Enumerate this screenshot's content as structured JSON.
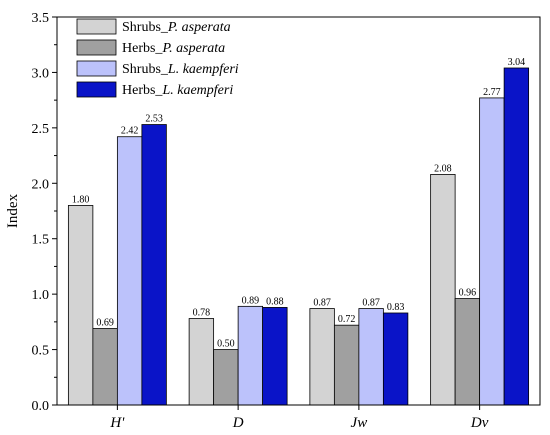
{
  "chart_data": {
    "type": "bar",
    "categories": [
      "H'",
      "D",
      "Jw",
      "Dv"
    ],
    "ylabel": "Index",
    "xlabel": "",
    "ylim": [
      0,
      3.5
    ],
    "yticks": [
      "0.0",
      "0.5",
      "1.0",
      "1.5",
      "2.0",
      "2.5",
      "3.0",
      "3.5"
    ],
    "grid": false,
    "legend_position": "top-left",
    "series": [
      {
        "name": "Shrubs_P. asperata",
        "name_prefix": "Shrubs_",
        "name_species": "P. asperata",
        "color": "#d3d3d3",
        "values": [
          1.8,
          0.78,
          0.87,
          2.08
        ],
        "labels": [
          "1.80",
          "0.78",
          "0.87",
          "2.08"
        ]
      },
      {
        "name": "Herbs_P. asperata",
        "name_prefix": "Herbs_",
        "name_species": "P. asperata",
        "color": "#a0a0a0",
        "values": [
          0.69,
          0.5,
          0.72,
          0.96
        ],
        "labels": [
          "0.69",
          "0.50",
          "0.72",
          "0.96"
        ]
      },
      {
        "name": "Shrubs_L. kaempferi",
        "name_prefix": "Shrubs_",
        "name_species": "L. kaempferi",
        "color": "#bcc2fb",
        "values": [
          2.42,
          0.89,
          0.87,
          2.77
        ],
        "labels": [
          "2.42",
          "0.89",
          "0.87",
          "2.77"
        ]
      },
      {
        "name": "Herbs_L. kaempferi",
        "name_prefix": "Herbs_",
        "name_species": "L. kaempferi",
        "color": "#0a14c8",
        "values": [
          2.53,
          0.88,
          0.83,
          3.04
        ],
        "labels": [
          "2.53",
          "0.88",
          "0.83",
          "3.04"
        ]
      }
    ]
  }
}
